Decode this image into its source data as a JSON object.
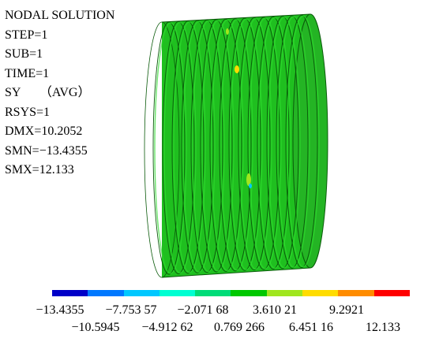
{
  "info": {
    "title": "NODAL SOLUTION",
    "lines": [
      "STEP=1",
      "SUB=1",
      "TIME=1",
      "SY 　 （AVG）",
      "RSYS=1",
      "DMX=10.2052",
      "SMN=−13.4355",
      "SMX=12.133"
    ]
  },
  "legend": {
    "colors": [
      "#0000c8",
      "#0078ff",
      "#00c8ff",
      "#00ffd2",
      "#00dc78",
      "#00c800",
      "#a0e61e",
      "#ffdc00",
      "#ff8c00",
      "#ff0000"
    ],
    "labels_top": [
      "−13.4355",
      "−7.753 57",
      "−2.071 68",
      "3.610 21",
      "9.2921"
    ],
    "labels_bottom": [
      "−10.5945",
      "−4.912 62",
      "0.769 266",
      "6.451 16",
      "12.133"
    ]
  },
  "model": {
    "fill_color": "#1fbf1f",
    "edge_color": "#0a5a0a"
  }
}
